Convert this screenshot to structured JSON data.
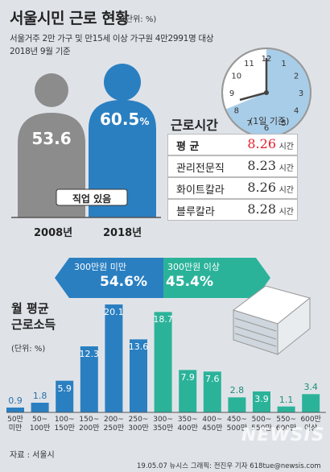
{
  "title": "서울시민 근로 현황",
  "title_unit": "(단위: %)",
  "subtitle_1": "서울거주 2만 가구 및 만15세 이상 가구원 4만2991명 대상",
  "subtitle_2": "2018년 9월 기준",
  "employment": {
    "label": "직업 있음",
    "years": [
      {
        "year": "2008년",
        "value": "53.6",
        "unit": "",
        "color": "#8c8c8c"
      },
      {
        "year": "2018년",
        "value": "60.5",
        "unit": "%",
        "color": "#2a7fc1"
      }
    ]
  },
  "hours": {
    "title": "근로시간",
    "clock_label": "(1일 기준)",
    "clock_numbers": [
      "12",
      "1",
      "2",
      "3",
      "4",
      "5",
      "6",
      "7",
      "8",
      "9",
      "10",
      "11"
    ],
    "rows": [
      {
        "label": "평 균",
        "value": "8.26",
        "unit": "시간",
        "highlight": true
      },
      {
        "label": "관리전문직",
        "value": "8.23",
        "unit": "시간"
      },
      {
        "label": "화이트칼라",
        "value": "8.26",
        "unit": "시간"
      },
      {
        "label": "블루칼라",
        "value": "8.28",
        "unit": "시간"
      }
    ],
    "highlight_color": "#e8202a"
  },
  "banners": {
    "left": {
      "label": "300만원 미만",
      "pct": "54.6%",
      "color": "#2a7fc1"
    },
    "right": {
      "label": "300만원 이상",
      "pct": "45.4%",
      "color": "#2bb39a"
    }
  },
  "chart_title_1": "월 평균",
  "chart_title_2": "근로소득",
  "chart_unit": "(단위: %)",
  "chart_data": {
    "type": "bar",
    "categories": [
      "50만\n미만",
      "50~\n100만",
      "100~\n150만",
      "150~\n200만",
      "200~\n250만",
      "250~\n300만",
      "300~\n350만",
      "350~\n400만",
      "400~\n450만",
      "450~\n500만",
      "500~\n550만",
      "550~\n600만",
      "600만\n이상"
    ],
    "values": [
      0.9,
      1.8,
      5.9,
      12.3,
      20.1,
      13.6,
      18.7,
      7.9,
      7.6,
      2.8,
      3.9,
      1.1,
      3.4
    ],
    "value_labels": [
      "0.9",
      "1.8",
      "5.9",
      "12.3",
      "20.1",
      "13.6",
      "18.7",
      "7.9",
      "7.6",
      "2.8",
      "3.9",
      "1.1",
      "3.4"
    ],
    "colors": {
      "under_300": "#2a7fc1",
      "over_300": "#2bb39a"
    },
    "ylim": [
      0,
      21
    ]
  },
  "source": "자료 : 서울시",
  "credit": "19.05.07  뉴시스 그래픽: 전진우 기자 618tue@newsis.com",
  "watermark": "NEWSIS"
}
